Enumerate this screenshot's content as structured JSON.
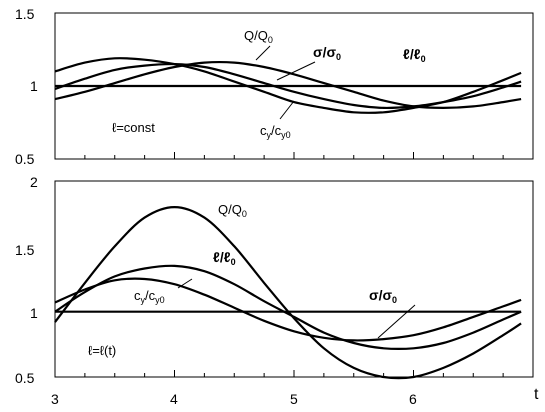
{
  "chart_data": [
    {
      "type": "line",
      "xlim": [
        3,
        7
      ],
      "ylim": [
        0.5,
        1.5
      ],
      "yticks": [
        0.5,
        1,
        1.5
      ],
      "ytick_labels": [
        "0.5",
        "1",
        "1.5"
      ],
      "grid": false,
      "x": [
        3.0,
        3.25,
        3.5,
        3.75,
        4.0,
        4.25,
        4.5,
        4.75,
        5.0,
        5.25,
        5.5,
        5.75,
        6.0,
        6.25,
        6.5,
        6.75,
        6.9
      ],
      "series": [
        {
          "name": "Q/Q0",
          "values": [
            1.1,
            1.16,
            1.19,
            1.18,
            1.15,
            1.1,
            1.03,
            0.96,
            0.89,
            0.85,
            0.82,
            0.82,
            0.85,
            0.89,
            0.96,
            1.04,
            1.09
          ]
        },
        {
          "name": "σ/σ0",
          "values": [
            0.98,
            1.05,
            1.11,
            1.14,
            1.15,
            1.13,
            1.08,
            1.02,
            0.96,
            0.91,
            0.87,
            0.85,
            0.86,
            0.89,
            0.93,
            0.99,
            1.03
          ]
        },
        {
          "name": "cy/cy0",
          "values": [
            0.91,
            0.96,
            1.02,
            1.08,
            1.13,
            1.16,
            1.16,
            1.13,
            1.08,
            1.02,
            0.96,
            0.9,
            0.86,
            0.85,
            0.86,
            0.89,
            0.91
          ]
        },
        {
          "name": "ℓ/ℓ0",
          "values": [
            1,
            1,
            1,
            1,
            1,
            1,
            1,
            1,
            1,
            1,
            1,
            1,
            1,
            1,
            1,
            1,
            1
          ]
        }
      ],
      "annotations": {
        "q": {
          "main": "Q/Q",
          "sub": "0"
        },
        "sigma": {
          "main": "σ/σ",
          "sub": "0"
        },
        "l": {
          "main": "ℓ/ℓ",
          "sub": "0"
        },
        "cy": {
          "c1": "c",
          "s1": "y",
          "mid": "/c",
          "s2": "y0"
        },
        "cond": "ℓ=const"
      }
    },
    {
      "type": "line",
      "xlim": [
        3,
        7
      ],
      "ylim": [
        0.5,
        2
      ],
      "yticks": [
        0.5,
        1,
        1.5,
        2
      ],
      "ytick_labels": [
        "0.5",
        "1",
        "1.5",
        "2"
      ],
      "xticks": [
        3,
        4,
        5,
        6
      ],
      "xtick_labels": [
        "3",
        "4",
        "5",
        "6"
      ],
      "xlabel": "t",
      "grid": false,
      "x": [
        3.0,
        3.25,
        3.5,
        3.75,
        4.0,
        4.25,
        4.5,
        4.75,
        5.0,
        5.25,
        5.5,
        5.75,
        6.0,
        6.25,
        6.5,
        6.75,
        6.9
      ],
      "series": [
        {
          "name": "Q/Q0",
          "values": [
            0.92,
            1.22,
            1.5,
            1.72,
            1.8,
            1.72,
            1.5,
            1.22,
            0.95,
            0.72,
            0.57,
            0.5,
            0.5,
            0.57,
            0.68,
            0.82,
            0.91
          ]
        },
        {
          "name": "ℓ/ℓ0",
          "values": [
            1.0,
            1.15,
            1.27,
            1.33,
            1.35,
            1.31,
            1.21,
            1.08,
            0.96,
            0.84,
            0.76,
            0.72,
            0.72,
            0.76,
            0.84,
            0.94,
            1.0
          ]
        },
        {
          "name": "cy/cy0",
          "values": [
            1.07,
            1.17,
            1.24,
            1.25,
            1.21,
            1.13,
            1.03,
            0.93,
            0.85,
            0.8,
            0.78,
            0.79,
            0.82,
            0.88,
            0.96,
            1.04,
            1.09
          ]
        },
        {
          "name": "σ/σ0",
          "values": [
            1,
            1,
            1,
            1,
            1,
            1,
            1,
            1,
            1,
            1,
            1,
            1,
            1,
            1,
            1,
            1,
            1
          ]
        }
      ],
      "annotations": {
        "q": {
          "main": "Q/Q",
          "sub": "0"
        },
        "l": {
          "main": "ℓ/ℓ",
          "sub": "0"
        },
        "cy": {
          "c1": "c",
          "s1": "y",
          "mid": "/c",
          "s2": "y0"
        },
        "sigma": {
          "main": "σ/σ",
          "sub": "0"
        },
        "cond": "ℓ=ℓ(t)"
      }
    }
  ]
}
